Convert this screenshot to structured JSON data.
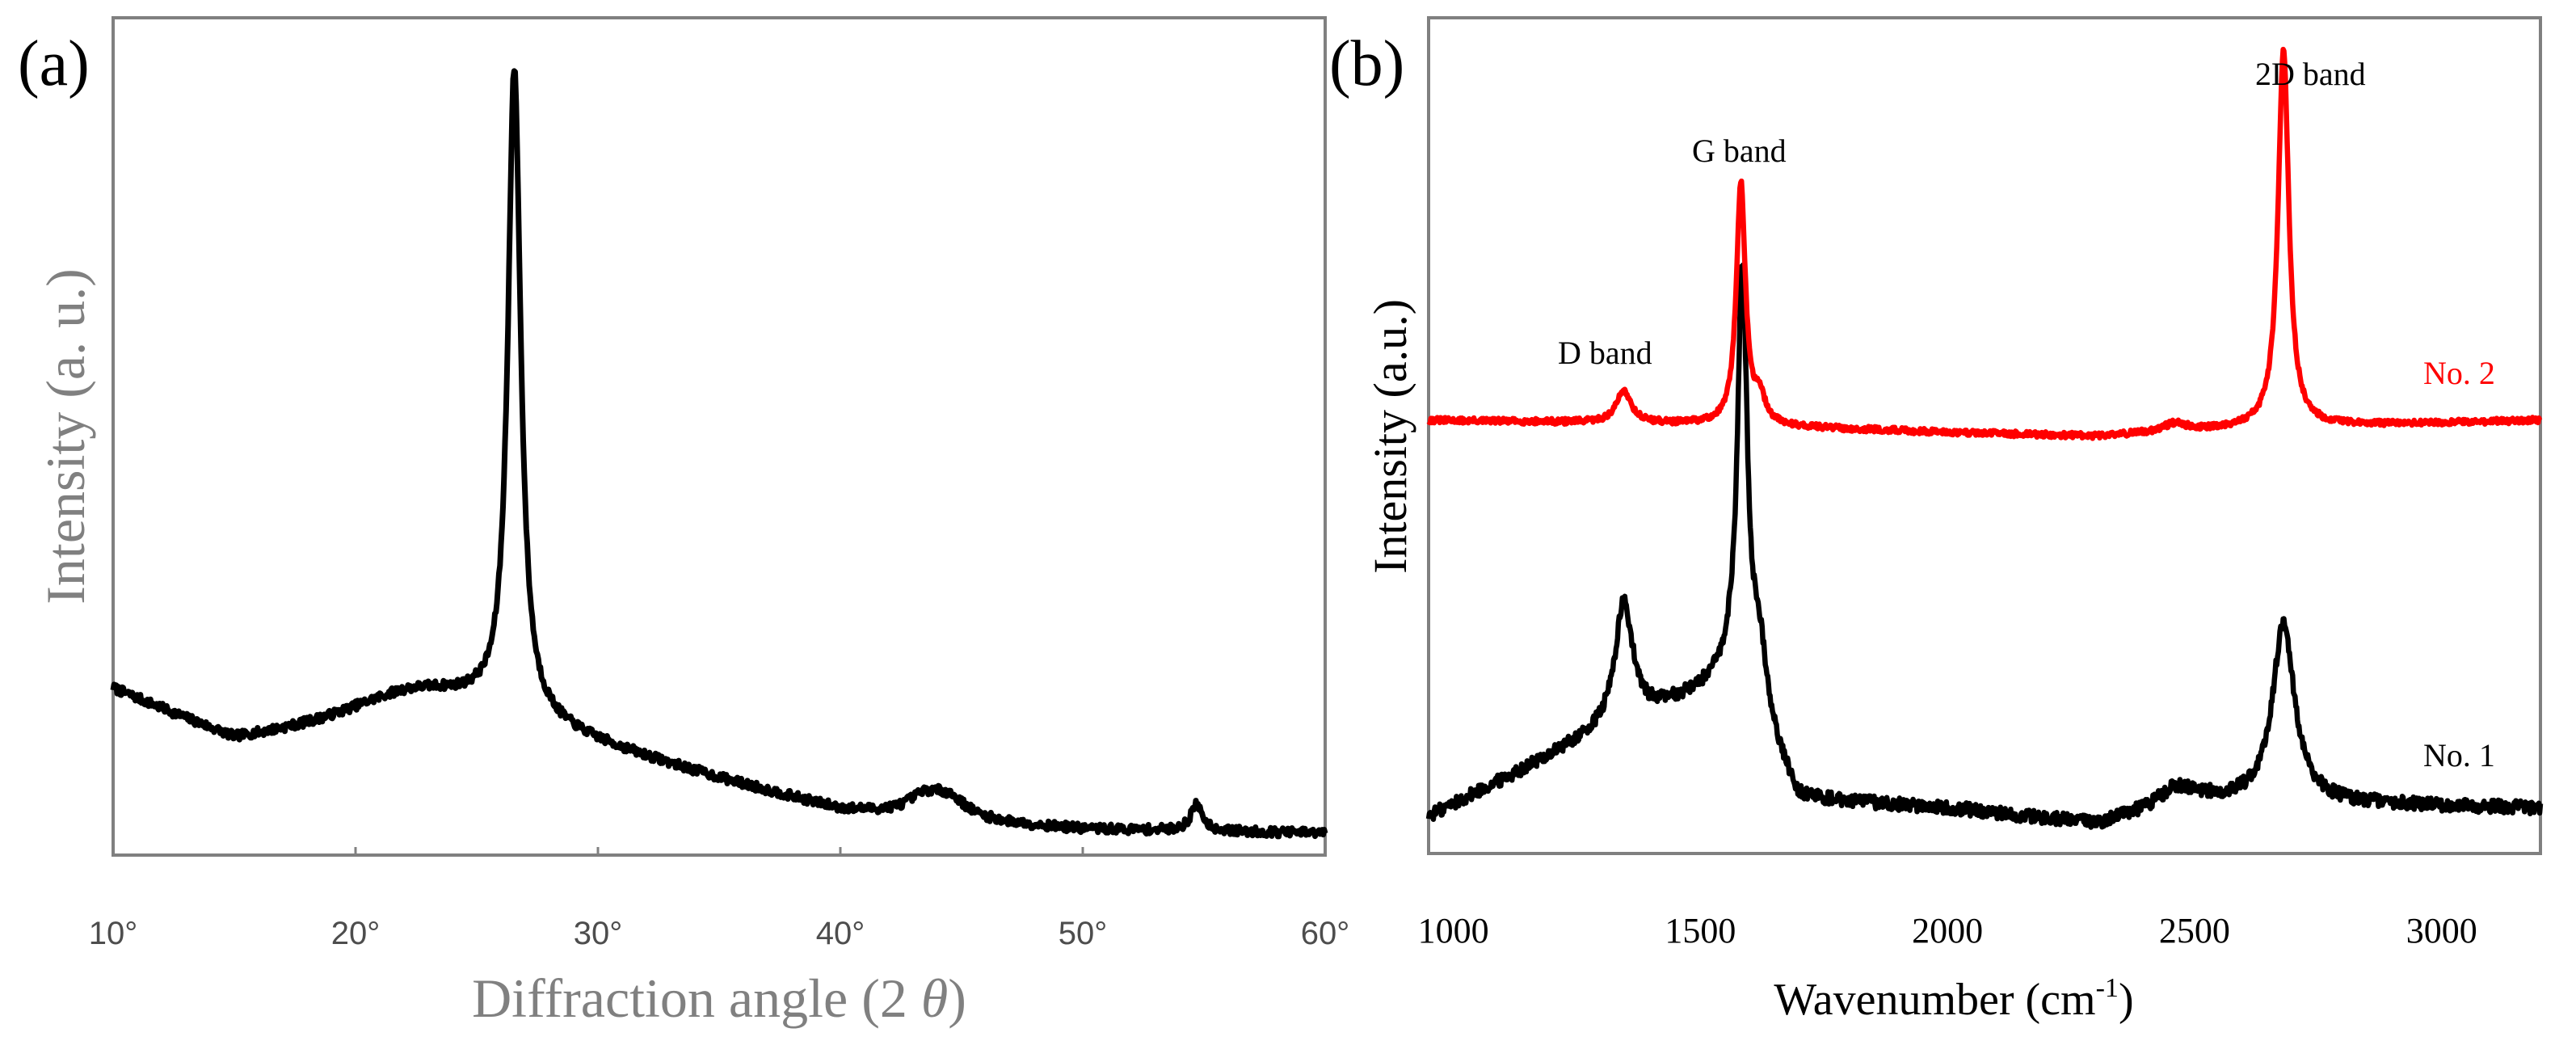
{
  "chart_data": [
    {
      "panel_label": "(a)",
      "type": "line",
      "title": "",
      "xlabel": "Diffraction angle (2 θ)",
      "xlabel_text": "Diffraction angle (2 ",
      "xlabel_symbol": "θ",
      "xlabel_close": ")",
      "ylabel": "Intensity (a. u.)",
      "xlim": [
        10,
        60
      ],
      "ylim": [
        0,
        100
      ],
      "xticks": [
        10,
        20,
        30,
        40,
        50,
        60
      ],
      "xtick_labels": [
        "10°",
        "20°",
        "30°",
        "40°",
        "50°",
        "60°"
      ],
      "grid": false,
      "color": "#000000",
      "peaks": [
        {
          "center": 22.5,
          "height": 5,
          "width": 3.5
        },
        {
          "center": 26.55,
          "height": 86,
          "width": 0.32
        },
        {
          "center": 43.5,
          "height": 2.5,
          "width": 0.9
        },
        {
          "center": 44.5,
          "height": 2.5,
          "width": 0.9
        },
        {
          "center": 54.7,
          "height": 3.5,
          "width": 0.3
        }
      ],
      "baseline": [
        [
          10,
          21
        ],
        [
          15,
          14
        ],
        [
          20,
          15.5
        ],
        [
          25,
          16.5
        ],
        [
          28,
          15
        ],
        [
          35,
          9
        ],
        [
          40,
          5
        ],
        [
          45,
          3.5
        ],
        [
          50,
          2.5
        ],
        [
          60,
          2
        ]
      ],
      "noise": 0.6
    },
    {
      "panel_label": "(b)",
      "type": "line",
      "title": "",
      "xlabel_text": "Wavenumber (cm",
      "xlabel_sup": "-1",
      "xlabel_close": ")",
      "xlabel": "Wavenumber (cm-1)",
      "ylabel": "Intensity (a.u.)",
      "xlim": [
        950,
        3200
      ],
      "ylim": [
        0,
        100
      ],
      "xticks": [
        1000,
        1500,
        2000,
        2500,
        3000
      ],
      "xtick_labels": [
        "1000",
        "1500",
        "2000",
        "2500",
        "3000"
      ],
      "grid": false,
      "series": [
        {
          "name": "No. 2",
          "color": "#ff0000",
          "offset": 51,
          "noise": 0.35,
          "peaks": [
            {
              "center": 1345,
              "height": 4,
              "width": 18
            },
            {
              "center": 1582,
              "height": 30,
              "width": 11
            },
            {
              "center": 1620,
              "height": 3,
              "width": 14
            },
            {
              "center": 2460,
              "height": 1,
              "width": 30
            },
            {
              "center": 2680,
              "height": 47,
              "width": 13
            }
          ],
          "baseline": [
            [
              950,
              1
            ],
            [
              1500,
              0.5
            ],
            [
              2000,
              -0.5
            ],
            [
              2300,
              -1
            ],
            [
              2600,
              0
            ],
            [
              3200,
              1
            ]
          ]
        },
        {
          "name": "No. 1",
          "color": "#000000",
          "offset": 3,
          "noise": 0.8,
          "peaks": [
            {
              "center": 1345,
              "height": 15,
              "width": 22
            },
            {
              "center": 1585,
              "height": 52,
              "width": 12
            },
            {
              "center": 1620,
              "height": 9,
              "width": 20
            },
            {
              "center": 2460,
              "height": 2,
              "width": 40
            },
            {
              "center": 2680,
              "height": 22,
              "width": 27
            }
          ],
          "baseline": [
            [
              950,
              0
            ],
            [
              1250,
              9
            ],
            [
              1450,
              14
            ],
            [
              1560,
              17
            ],
            [
              1700,
              2
            ],
            [
              2000,
              1
            ],
            [
              2300,
              -1
            ],
            [
              2500,
              2
            ],
            [
              3200,
              1
            ]
          ]
        }
      ],
      "annotations": [
        {
          "text": "D band"
        },
        {
          "text": "G band"
        },
        {
          "text": "2D band"
        }
      ]
    }
  ]
}
